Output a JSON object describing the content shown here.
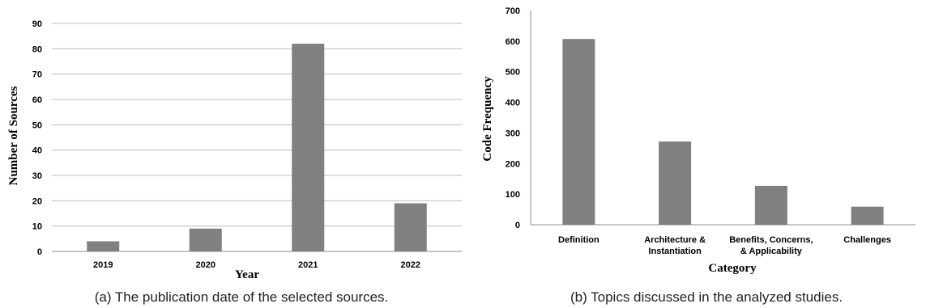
{
  "chart_data": [
    {
      "type": "bar",
      "categories": [
        "2019",
        "2020",
        "2021",
        "2022"
      ],
      "values": [
        4,
        9,
        82,
        19
      ],
      "xlabel": "Year",
      "ylabel": "Number of Sources",
      "ylim": [
        0,
        90
      ],
      "yticks": [
        "0",
        "10",
        "20",
        "30",
        "40",
        "50",
        "60",
        "70",
        "80",
        "90"
      ],
      "grid": true,
      "bar_color": "#808080",
      "caption": "(a) The publication date of the selected sources."
    },
    {
      "type": "bar",
      "categories": [
        [
          "Definition"
        ],
        [
          "Architecture &",
          "Instantiation"
        ],
        [
          "Benefits, Concerns,",
          "& Applicability"
        ],
        [
          "Challenges"
        ]
      ],
      "values": [
        607,
        272,
        127,
        59
      ],
      "xlabel": "Category",
      "ylabel": "Code Frequency",
      "ylim": [
        0,
        700
      ],
      "yticks": [
        "0",
        "100",
        "200",
        "300",
        "400",
        "500",
        "600",
        "700"
      ],
      "grid": false,
      "bar_color": "#808080",
      "caption": "(b) Topics discussed in the analyzed studies."
    }
  ]
}
